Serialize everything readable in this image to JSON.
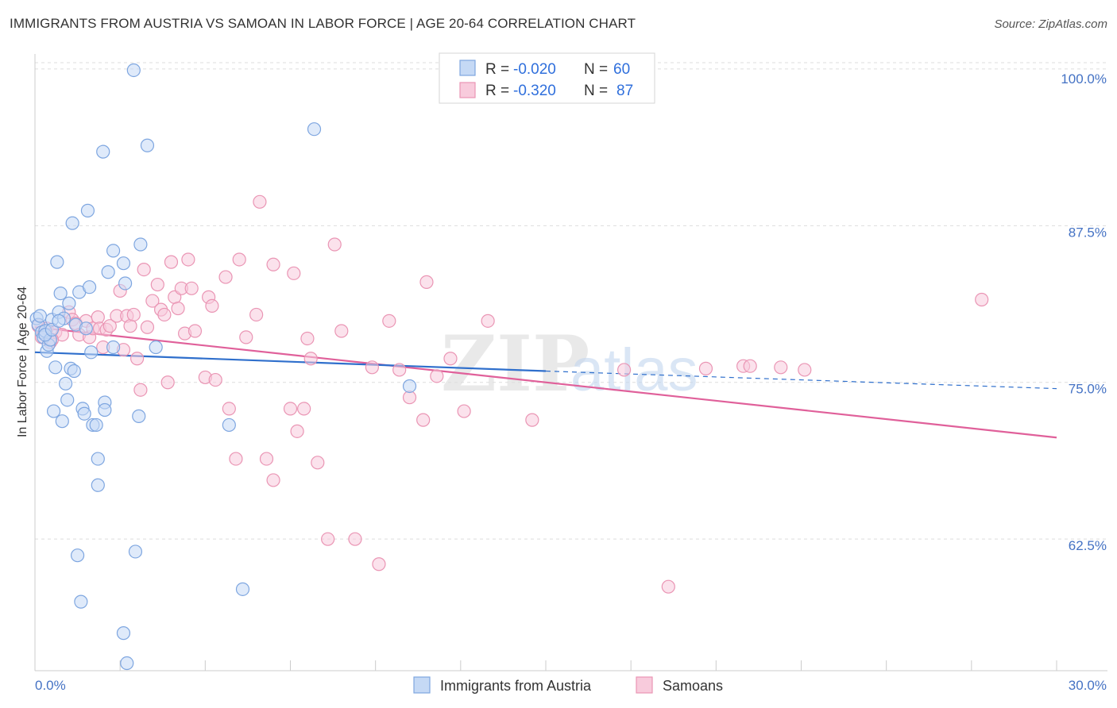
{
  "header": {
    "title": "IMMIGRANTS FROM AUSTRIA VS SAMOAN IN LABOR FORCE | AGE 20-64 CORRELATION CHART",
    "source": "Source: ZipAtlas.com"
  },
  "watermark": {
    "zip": "ZIP",
    "atlas": "atlas"
  },
  "legend": {
    "rows": [
      {
        "r_label": "R =",
        "r_value": "-0.020",
        "n_label": "N =",
        "n_value": "60"
      },
      {
        "r_label": "R =",
        "r_value": "-0.320",
        "n_label": "N =",
        "n_value": "87"
      }
    ]
  },
  "bottom_legend": {
    "items": [
      {
        "label": "Immigrants from Austria"
      },
      {
        "label": "Samoans"
      }
    ]
  },
  "chart_data": {
    "type": "scatter",
    "title": "IMMIGRANTS FROM AUSTRIA VS SAMOAN IN LABOR FORCE | AGE 20-64 CORRELATION CHART",
    "xlabel": "",
    "ylabel": "In Labor Force | Age 20-64",
    "xlim": [
      0,
      30
    ],
    "ylim": [
      52,
      100.5
    ],
    "x_tick_labels": [
      "0.0%",
      "30.0%"
    ],
    "y_ticks": [
      62.5,
      75.0,
      87.5,
      100.0
    ],
    "y_tick_labels": [
      "62.5%",
      "75.0%",
      "87.5%",
      "100.0%"
    ],
    "grid": "horizontal dashed",
    "legend_position": "top-center",
    "colors": {
      "austria_fill": "#c5d9f5",
      "austria_stroke": "#7ea6e0",
      "austria_line": "#2f6fcc",
      "samoan_fill": "#f8cbdc",
      "samoan_stroke": "#ea95b4",
      "samoan_line": "#e0609a",
      "tick_text": "#4472c4",
      "grid": "#dddddd"
    },
    "series": [
      {
        "name": "Immigrants from Austria",
        "r": -0.02,
        "n": 60,
        "trend": {
          "solid": [
            [
              0,
              77.4
            ],
            [
              15,
              75.9
            ]
          ],
          "dashed": [
            [
              15,
              75.9
            ],
            [
              30,
              74.5
            ]
          ]
        },
        "points": [
          [
            0.05,
            80.1
          ],
          [
            0.1,
            79.6
          ],
          [
            0.15,
            80.3
          ],
          [
            0.2,
            79.0
          ],
          [
            0.25,
            78.6
          ],
          [
            0.3,
            79.1
          ],
          [
            0.35,
            77.5
          ],
          [
            0.4,
            78.0
          ],
          [
            0.45,
            78.4
          ],
          [
            0.5,
            80.0
          ],
          [
            0.55,
            72.7
          ],
          [
            0.6,
            76.2
          ],
          [
            0.65,
            84.6
          ],
          [
            0.7,
            80.6
          ],
          [
            0.75,
            82.1
          ],
          [
            0.8,
            71.9
          ],
          [
            0.85,
            80.1
          ],
          [
            0.9,
            74.9
          ],
          [
            0.95,
            73.6
          ],
          [
            1.0,
            81.3
          ],
          [
            1.05,
            76.1
          ],
          [
            1.1,
            87.7
          ],
          [
            1.15,
            75.9
          ],
          [
            1.2,
            79.6
          ],
          [
            1.25,
            61.2
          ],
          [
            1.3,
            82.2
          ],
          [
            1.35,
            57.5
          ],
          [
            1.4,
            72.9
          ],
          [
            1.45,
            72.5
          ],
          [
            1.5,
            79.3
          ],
          [
            1.55,
            88.7
          ],
          [
            1.6,
            82.6
          ],
          [
            1.65,
            77.4
          ],
          [
            1.7,
            71.6
          ],
          [
            1.8,
            71.6
          ],
          [
            1.85,
            68.9
          ],
          [
            1.85,
            66.8
          ],
          [
            2.05,
            73.4
          ],
          [
            2.0,
            93.4
          ],
          [
            2.05,
            72.8
          ],
          [
            2.15,
            83.8
          ],
          [
            2.3,
            77.8
          ],
          [
            2.3,
            85.5
          ],
          [
            2.6,
            84.5
          ],
          [
            2.6,
            55.0
          ],
          [
            2.65,
            82.9
          ],
          [
            2.7,
            52.6
          ],
          [
            2.9,
            99.9
          ],
          [
            2.95,
            61.5
          ],
          [
            3.05,
            72.3
          ],
          [
            3.1,
            86.0
          ],
          [
            3.3,
            93.9
          ],
          [
            3.55,
            77.8
          ],
          [
            6.1,
            58.5
          ],
          [
            5.7,
            71.6
          ],
          [
            8.2,
            95.2
          ],
          [
            11.0,
            74.7
          ],
          [
            0.3,
            78.8
          ],
          [
            0.5,
            79.2
          ],
          [
            0.7,
            79.9
          ]
        ]
      },
      {
        "name": "Samoans",
        "r": -0.32,
        "n": 87,
        "trend": {
          "solid": [
            [
              0,
              79.4
            ],
            [
              30,
              70.6
            ]
          ]
        },
        "points": [
          [
            0.1,
            79.5
          ],
          [
            0.2,
            78.6
          ],
          [
            0.35,
            79.3
          ],
          [
            0.45,
            78.2
          ],
          [
            0.6,
            79.0
          ],
          [
            0.8,
            78.8
          ],
          [
            1.0,
            80.6
          ],
          [
            1.1,
            80.0
          ],
          [
            1.2,
            79.7
          ],
          [
            1.3,
            78.8
          ],
          [
            1.5,
            79.9
          ],
          [
            1.6,
            78.6
          ],
          [
            1.7,
            79.3
          ],
          [
            1.85,
            80.2
          ],
          [
            1.9,
            79.3
          ],
          [
            2.0,
            77.8
          ],
          [
            2.1,
            79.2
          ],
          [
            2.2,
            79.5
          ],
          [
            2.4,
            80.3
          ],
          [
            2.5,
            82.3
          ],
          [
            2.6,
            77.6
          ],
          [
            2.7,
            80.3
          ],
          [
            2.8,
            79.5
          ],
          [
            2.9,
            80.4
          ],
          [
            3.0,
            76.9
          ],
          [
            3.1,
            74.4
          ],
          [
            3.2,
            84.0
          ],
          [
            3.3,
            79.4
          ],
          [
            3.45,
            81.5
          ],
          [
            3.6,
            82.8
          ],
          [
            3.7,
            80.8
          ],
          [
            3.8,
            80.4
          ],
          [
            3.9,
            75.0
          ],
          [
            4.0,
            84.6
          ],
          [
            4.1,
            81.8
          ],
          [
            4.2,
            80.9
          ],
          [
            4.3,
            82.5
          ],
          [
            4.4,
            78.9
          ],
          [
            4.5,
            84.8
          ],
          [
            4.6,
            82.5
          ],
          [
            4.7,
            79.1
          ],
          [
            5.0,
            75.4
          ],
          [
            5.1,
            81.8
          ],
          [
            5.2,
            81.1
          ],
          [
            5.3,
            75.2
          ],
          [
            5.6,
            83.4
          ],
          [
            5.7,
            72.9
          ],
          [
            5.9,
            68.9
          ],
          [
            6.0,
            84.8
          ],
          [
            6.2,
            78.6
          ],
          [
            6.5,
            80.4
          ],
          [
            6.6,
            89.4
          ],
          [
            6.8,
            68.9
          ],
          [
            7.0,
            67.2
          ],
          [
            7.0,
            84.4
          ],
          [
            7.5,
            72.9
          ],
          [
            7.6,
            83.7
          ],
          [
            7.7,
            71.1
          ],
          [
            7.9,
            72.9
          ],
          [
            8.0,
            78.5
          ],
          [
            8.1,
            76.9
          ],
          [
            8.3,
            68.6
          ],
          [
            8.6,
            62.5
          ],
          [
            8.8,
            86.0
          ],
          [
            9.0,
            79.1
          ],
          [
            9.4,
            62.5
          ],
          [
            9.9,
            76.2
          ],
          [
            10.1,
            60.5
          ],
          [
            10.4,
            79.9
          ],
          [
            10.7,
            76.0
          ],
          [
            11.0,
            73.8
          ],
          [
            11.4,
            72.0
          ],
          [
            11.5,
            83.0
          ],
          [
            11.8,
            75.5
          ],
          [
            12.2,
            76.9
          ],
          [
            12.6,
            72.7
          ],
          [
            13.3,
            79.9
          ],
          [
            14.6,
            72.0
          ],
          [
            17.3,
            76.0
          ],
          [
            18.6,
            58.7
          ],
          [
            19.7,
            76.1
          ],
          [
            20.8,
            76.3
          ],
          [
            21.0,
            76.3
          ],
          [
            21.9,
            76.2
          ],
          [
            22.6,
            76.0
          ],
          [
            27.8,
            81.6
          ],
          [
            0.5,
            78.4
          ]
        ]
      }
    ]
  }
}
